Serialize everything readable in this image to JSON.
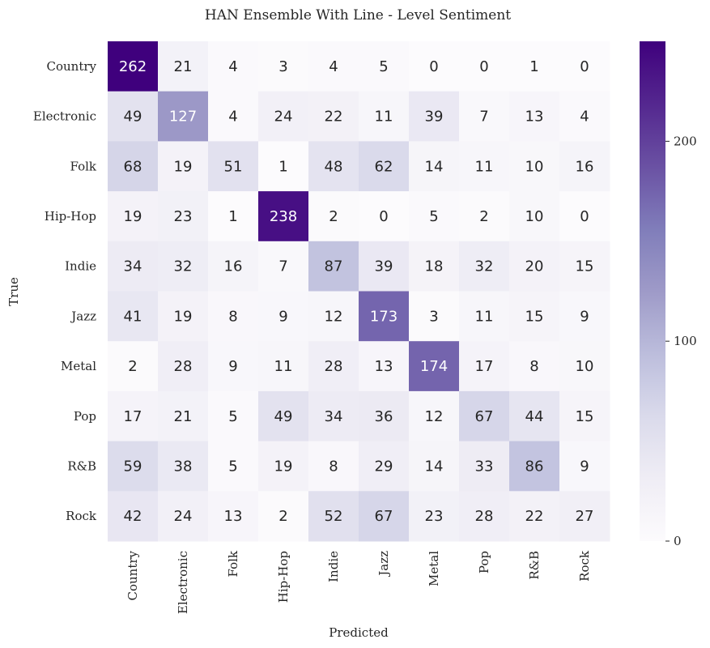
{
  "chart_data": {
    "type": "heatmap",
    "title": "HAN Ensemble With Line - Level Sentiment",
    "xlabel": "Predicted",
    "ylabel": "True",
    "x_categories": [
      "Country",
      "Electronic",
      "Folk",
      "Hip-Hop",
      "Indie",
      "Jazz",
      "Metal",
      "Pop",
      "R&B",
      "Rock"
    ],
    "y_categories": [
      "Country",
      "Electronic",
      "Folk",
      "Hip-Hop",
      "Indie",
      "Jazz",
      "Metal",
      "Pop",
      "R&B",
      "Rock"
    ],
    "values": [
      [
        262,
        21,
        4,
        3,
        4,
        5,
        0,
        0,
        1,
        0
      ],
      [
        49,
        127,
        4,
        24,
        22,
        11,
        39,
        7,
        13,
        4
      ],
      [
        68,
        19,
        51,
        1,
        48,
        62,
        14,
        11,
        10,
        16
      ],
      [
        19,
        23,
        1,
        238,
        2,
        0,
        5,
        2,
        10,
        0
      ],
      [
        34,
        32,
        16,
        7,
        87,
        39,
        18,
        32,
        20,
        15
      ],
      [
        41,
        19,
        8,
        9,
        12,
        173,
        3,
        11,
        15,
        9
      ],
      [
        2,
        28,
        9,
        11,
        28,
        13,
        174,
        17,
        8,
        10
      ],
      [
        17,
        21,
        5,
        49,
        34,
        36,
        12,
        67,
        44,
        15
      ],
      [
        59,
        38,
        5,
        19,
        8,
        29,
        14,
        33,
        86,
        9
      ],
      [
        42,
        24,
        13,
        2,
        52,
        67,
        23,
        28,
        22,
        27
      ]
    ],
    "colorscale": "Purples",
    "color_range": [
      0,
      250
    ],
    "colorbar_ticks": [
      0,
      100,
      200
    ],
    "colors": {
      "low": "#fcfbfd",
      "high": "#3f007d"
    }
  }
}
